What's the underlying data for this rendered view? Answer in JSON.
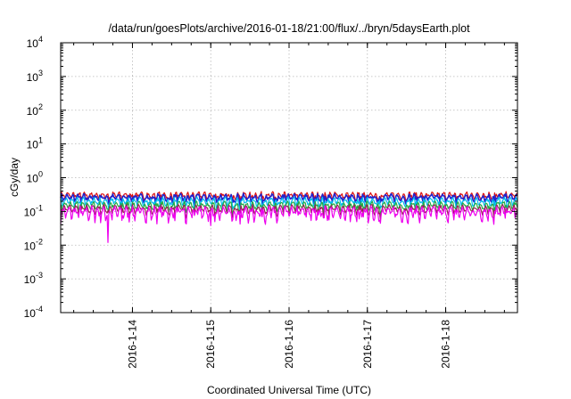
{
  "chart_data": {
    "type": "line",
    "title": "/data/run/goesPlots/archive/2016-01-18/21:00/flux/../bryn/5daysEarth.plot",
    "xlabel": "Coordinated Universal Time (UTC)",
    "ylabel": "cGy/day",
    "yscale": "log",
    "ylim": [
      0.0001,
      10000
    ],
    "xlim": [
      "2016-01-13 02:00",
      "2016-01-18 22:00"
    ],
    "x_ticks": [
      "2016-1-14",
      "2016-1-15",
      "2016-1-16",
      "2016-1-17",
      "2016-1-18"
    ],
    "y_ticks": [
      {
        "base": "10",
        "exp": "4"
      },
      {
        "base": "10",
        "exp": "3"
      },
      {
        "base": "10",
        "exp": "2"
      },
      {
        "base": "10",
        "exp": "1"
      },
      {
        "base": "10",
        "exp": "0"
      },
      {
        "base": "10",
        "exp": "-1"
      },
      {
        "base": "10",
        "exp": "-2"
      },
      {
        "base": "10",
        "exp": "-3"
      },
      {
        "base": "10",
        "exp": "-4"
      }
    ],
    "grid": true,
    "series": [
      {
        "color": "#dd1111",
        "base": 0.3,
        "amp": 0.1
      },
      {
        "color": "#2222cc",
        "base": 0.26,
        "amp": 0.09
      },
      {
        "color": "#00bbee",
        "base": 0.2,
        "amp": 0.08
      },
      {
        "color": "#22aa44",
        "base": 0.15,
        "amp": 0.06
      },
      {
        "color": "#992255",
        "base": 0.12,
        "amp": 0.05
      },
      {
        "color": "#ee00ee",
        "base": 0.095,
        "amp": 0.06
      }
    ],
    "dips": [
      {
        "t": "2016-01-13 16:30",
        "value": 0.012
      },
      {
        "t": "2016-01-15 00:00",
        "value": 0.038
      },
      {
        "t": "2016-01-15 09:00",
        "value": 0.042
      },
      {
        "t": "2016-01-16 21:30",
        "value": 0.06
      }
    ]
  }
}
